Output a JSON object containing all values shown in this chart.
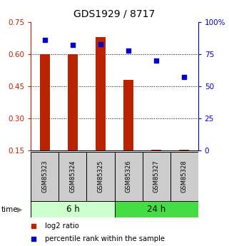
{
  "title": "GDS1929 / 8717",
  "samples": [
    "GSM85323",
    "GSM85324",
    "GSM85325",
    "GSM85326",
    "GSM85327",
    "GSM85328"
  ],
  "log2_ratio": [
    0.6,
    0.6,
    0.68,
    0.48,
    0.155,
    0.155
  ],
  "percentile_rank": [
    86,
    82,
    83,
    78,
    70,
    57
  ],
  "bar_color": "#bb2200",
  "dot_color": "#0000cc",
  "ylim_left": [
    0.15,
    0.75
  ],
  "ylim_right": [
    0,
    100
  ],
  "yticks_left": [
    0.15,
    0.3,
    0.45,
    0.6,
    0.75
  ],
  "ytick_labels_left": [
    "0.15",
    "0.30",
    "0.45",
    "0.60",
    "0.75"
  ],
  "yticks_right": [
    0,
    25,
    50,
    75,
    100
  ],
  "ytick_labels_right": [
    "0",
    "25",
    "50",
    "75",
    "100%"
  ],
  "grid_lines": [
    0.3,
    0.45,
    0.6
  ],
  "groups": [
    {
      "label": "6 h",
      "indices": [
        0,
        1,
        2
      ],
      "color": "#ccffcc"
    },
    {
      "label": "24 h",
      "indices": [
        3,
        4,
        5
      ],
      "color": "#44dd44"
    }
  ],
  "legend_items": [
    {
      "label": "log2 ratio",
      "color": "#bb2200"
    },
    {
      "label": "percentile rank within the sample",
      "color": "#0000cc"
    }
  ],
  "background_color": "#ffffff",
  "label_area_color": "#cccccc",
  "bar_width": 0.35,
  "dot_size": 25
}
